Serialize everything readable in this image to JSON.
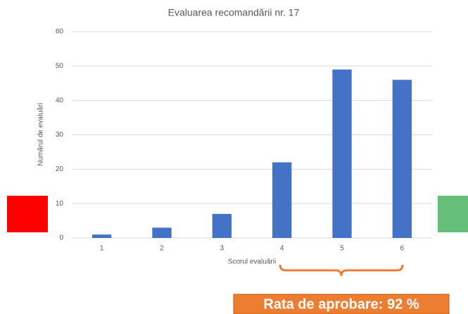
{
  "chart_data": {
    "type": "bar",
    "title": "Evaluarea recomandării nr. 17",
    "x_label": "Scorul evaluării",
    "y_label": "Numărul de evaluări",
    "categories": [
      "1",
      "2",
      "3",
      "4",
      "5",
      "6"
    ],
    "values": [
      1,
      3,
      7,
      22,
      49,
      46
    ],
    "color": "#4472c4",
    "ylim": [
      0,
      60
    ],
    "yticks": [
      0,
      10,
      20,
      30,
      40,
      50,
      60
    ],
    "grid": true,
    "annotations": [
      "Rata de aprobare: 92 %"
    ]
  }
}
